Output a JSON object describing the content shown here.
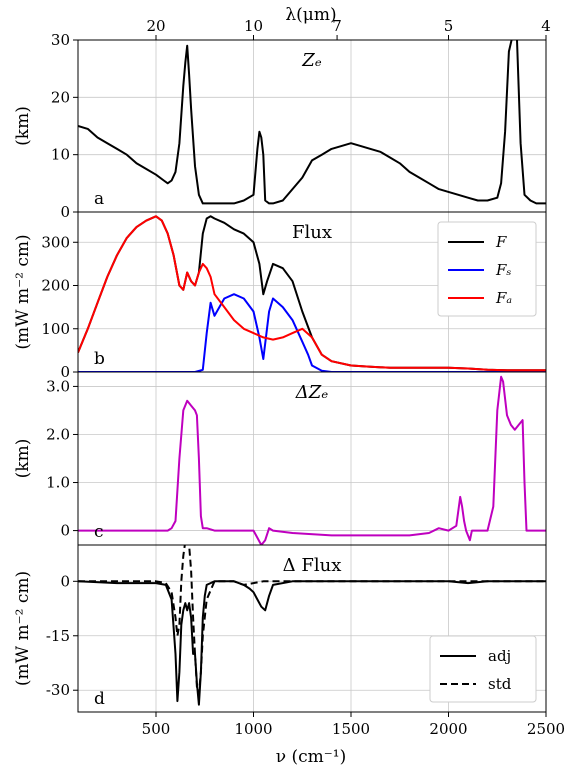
{
  "chart_data": {
    "type": "line",
    "x_axis": {
      "label": "ν (cm⁻¹)",
      "range": [
        100,
        2500
      ],
      "ticks": [
        500,
        1000,
        1500,
        2000,
        2500
      ],
      "tick_labels": [
        "500",
        "1000",
        "1500",
        "2000",
        "2500"
      ]
    },
    "top_axis": {
      "label": "λ(μm)",
      "ticks_wavenumber": [
        500,
        1000,
        1428.57,
        2000,
        2500
      ],
      "tick_labels": [
        "20",
        "10",
        "7",
        "5",
        "4"
      ]
    },
    "panels": [
      {
        "letter": "a",
        "title": "Zₑ",
        "ylabel": "(km)",
        "ylim": [
          0,
          30
        ],
        "yticks": [
          0,
          10,
          20,
          30
        ],
        "ytick_labels": [
          "0",
          "10",
          "20",
          "30"
        ],
        "series": [
          {
            "color": "#000000",
            "style": "solid",
            "x": [
              100,
              150,
              200,
              250,
              300,
              350,
              400,
              450,
              500,
              540,
              560,
              580,
              600,
              620,
              640,
              650,
              660,
              670,
              680,
              700,
              720,
              740,
              760,
              800,
              850,
              900,
              950,
              1000,
              1020,
              1030,
              1040,
              1050,
              1060,
              1080,
              1100,
              1150,
              1200,
              1250,
              1300,
              1350,
              1400,
              1450,
              1500,
              1550,
              1600,
              1650,
              1700,
              1750,
              1800,
              1850,
              1900,
              1950,
              2000,
              2050,
              2100,
              2150,
              2200,
              2250,
              2270,
              2290,
              2310,
              2330,
              2350,
              2370,
              2390,
              2420,
              2450,
              2500
            ],
            "y": [
              15,
              14.5,
              13,
              12,
              11,
              10,
              8.5,
              7.5,
              6.5,
              5.5,
              5,
              5.5,
              7,
              12,
              22,
              26,
              29,
              24,
              18,
              8,
              3,
              1.5,
              1.5,
              1.5,
              1.5,
              1.5,
              2,
              3,
              11,
              14,
              13,
              10,
              2,
              1.5,
              1.5,
              2,
              4,
              6,
              9,
              10,
              11,
              11.5,
              12,
              11.5,
              11,
              10.5,
              9.5,
              8.5,
              7,
              6,
              5,
              4,
              3.5,
              3,
              2.5,
              2,
              2,
              2.5,
              5,
              14,
              28,
              31,
              31,
              12,
              3,
              2,
              1.5,
              1.5
            ]
          }
        ]
      },
      {
        "letter": "b",
        "title": "Flux",
        "ylabel": "(mW m⁻² cm)",
        "ylim": [
          0,
          370
        ],
        "yticks": [
          0,
          100,
          200,
          300
        ],
        "ytick_labels": [
          "0",
          "100",
          "200",
          "300"
        ],
        "legend": {
          "position": "top-right",
          "entries": [
            {
              "name": "F",
              "color": "#000000",
              "style": "solid"
            },
            {
              "name": "Fₛ",
              "color": "#0000ff",
              "style": "solid"
            },
            {
              "name": "Fₐ",
              "color": "#ff0000",
              "style": "solid"
            }
          ]
        },
        "series": [
          {
            "name": "F",
            "color": "#000000",
            "style": "solid",
            "x": [
              100,
              150,
              200,
              250,
              300,
              350,
              400,
              450,
              500,
              530,
              560,
              590,
              620,
              640,
              660,
              680,
              700,
              720,
              740,
              760,
              780,
              800,
              850,
              900,
              950,
              1000,
              1030,
              1050,
              1070,
              1100,
              1150,
              1200,
              1250,
              1300,
              1350,
              1400,
              1500,
              1600,
              1700,
              1800,
              1900,
              2000,
              2100,
              2200,
              2300,
              2400,
              2500
            ],
            "y": [
              45,
              100,
              160,
              220,
              270,
              310,
              335,
              350,
              360,
              350,
              320,
              270,
              200,
              190,
              230,
              210,
              200,
              230,
              320,
              355,
              360,
              355,
              345,
              330,
              320,
              300,
              250,
              180,
              210,
              250,
              240,
              210,
              140,
              80,
              40,
              25,
              15,
              12,
              10,
              10,
              10,
              10,
              8,
              5,
              4,
              4,
              4
            ]
          },
          {
            "name": "Fₛ",
            "color": "#0000ff",
            "style": "solid",
            "x": [
              100,
              200,
              300,
              400,
              500,
              600,
              700,
              740,
              760,
              780,
              800,
              850,
              900,
              950,
              1000,
              1030,
              1050,
              1080,
              1100,
              1150,
              1200,
              1250,
              1280,
              1300,
              1350,
              1400,
              1500,
              1600,
              1700,
              1800,
              2000,
              2200,
              2500
            ],
            "y": [
              0,
              0,
              0,
              0,
              0,
              0,
              0,
              5,
              90,
              160,
              130,
              170,
              180,
              170,
              140,
              80,
              30,
              140,
              170,
              150,
              120,
              70,
              40,
              15,
              3,
              0,
              0,
              0,
              0,
              0,
              0,
              0,
              0
            ]
          },
          {
            "name": "Fₐ",
            "color": "#ff0000",
            "style": "solid",
            "x": [
              100,
              150,
              200,
              250,
              300,
              350,
              400,
              450,
              500,
              530,
              560,
              590,
              620,
              640,
              660,
              680,
              700,
              720,
              740,
              760,
              780,
              800,
              850,
              900,
              950,
              1000,
              1050,
              1100,
              1150,
              1200,
              1250,
              1300,
              1350,
              1400,
              1500,
              1600,
              1700,
              1800,
              1900,
              2000,
              2100,
              2200,
              2300,
              2400,
              2500
            ],
            "y": [
              45,
              100,
              160,
              220,
              270,
              310,
              335,
              350,
              360,
              350,
              320,
              270,
              200,
              190,
              230,
              210,
              200,
              230,
              250,
              240,
              220,
              180,
              150,
              120,
              100,
              90,
              80,
              75,
              80,
              90,
              100,
              80,
              40,
              25,
              15,
              12,
              10,
              10,
              10,
              10,
              8,
              5,
              4,
              4,
              4
            ]
          }
        ]
      },
      {
        "letter": "c",
        "title": "ΔZₑ",
        "ylabel": "(km)",
        "ylim": [
          -0.3,
          3.3
        ],
        "yticks": [
          0,
          1.0,
          2.0,
          3.0
        ],
        "ytick_labels": [
          "0",
          "1.0",
          "2.0",
          "3.0"
        ],
        "series": [
          {
            "color": "#bf00bf",
            "style": "solid",
            "x": [
              100,
              300,
              500,
              560,
              580,
              600,
              620,
              640,
              660,
              680,
              700,
              710,
              720,
              730,
              740,
              760,
              800,
              900,
              950,
              1000,
              1040,
              1060,
              1080,
              1100,
              1200,
              1400,
              1600,
              1800,
              1900,
              1950,
              2000,
              2040,
              2060,
              2070,
              2080,
              2090,
              2110,
              2120,
              2140,
              2200,
              2230,
              2250,
              2270,
              2280,
              2300,
              2320,
              2340,
              2360,
              2380,
              2390,
              2400,
              2450,
              2500
            ],
            "y": [
              0,
              0,
              0,
              0,
              0.05,
              0.2,
              1.5,
              2.5,
              2.7,
              2.6,
              2.5,
              2.4,
              1.5,
              0.3,
              0.05,
              0.05,
              0,
              0,
              0,
              0,
              -0.3,
              -0.2,
              0.05,
              0,
              -0.05,
              -0.1,
              -0.1,
              -0.1,
              -0.05,
              0.05,
              0,
              0.1,
              0.7,
              0.5,
              0.2,
              0,
              -0.2,
              0,
              0,
              0,
              0.5,
              2.5,
              3.2,
              3.1,
              2.4,
              2.2,
              2.1,
              2.2,
              2.3,
              1.0,
              0,
              0,
              0
            ]
          }
        ]
      },
      {
        "letter": "d",
        "title": "Δ Flux",
        "ylabel": "(mW m⁻² cm)",
        "ylim": [
          -36,
          10
        ],
        "yticks": [
          0,
          -15,
          -30
        ],
        "ytick_labels": [
          "0",
          "-15",
          "-30"
        ],
        "legend": {
          "position": "bottom-right",
          "entries": [
            {
              "name": "adj",
              "color": "#000000",
              "style": "solid"
            },
            {
              "name": "std",
              "color": "#000000",
              "style": "dashed"
            }
          ]
        },
        "series": [
          {
            "name": "adj",
            "color": "#000000",
            "style": "solid",
            "x": [
              100,
              300,
              500,
              550,
              580,
              600,
              610,
              620,
              630,
              640,
              650,
              660,
              670,
              680,
              690,
              700,
              710,
              720,
              730,
              740,
              750,
              760,
              780,
              800,
              900,
              950,
              980,
              1000,
              1020,
              1040,
              1060,
              1080,
              1100,
              1200,
              1500,
              1800,
              2000,
              2100,
              2200,
              2500
            ],
            "y": [
              0,
              -0.5,
              -0.5,
              -1,
              -5,
              -20,
              -33,
              -25,
              -12,
              -8,
              -6,
              -8,
              -6,
              -10,
              -20,
              -20,
              -28,
              -34,
              -25,
              -10,
              -4,
              -1,
              -0.5,
              0,
              0,
              -1,
              -2,
              -3,
              -5,
              -7,
              -8,
              -4,
              -1,
              0,
              0,
              0,
              0,
              -0.5,
              0,
              0
            ]
          },
          {
            "name": "std",
            "color": "#000000",
            "style": "dashed",
            "x": [
              100,
              300,
              500,
              550,
              580,
              600,
              610,
              620,
              630,
              640,
              650,
              660,
              670,
              680,
              690,
              700,
              710,
              720,
              730,
              740,
              760,
              800,
              900,
              950,
              1000,
              1050,
              1100,
              1500,
              2000,
              2500
            ],
            "y": [
              0,
              0,
              0,
              -0.5,
              -3,
              -10,
              -15,
              -12,
              0,
              7,
              11,
              12,
              10,
              3,
              -10,
              -20,
              -29,
              -31,
              -25,
              -15,
              -5,
              0,
              0,
              -1,
              -0.5,
              0,
              0,
              0,
              0,
              0
            ]
          }
        ]
      }
    ]
  }
}
